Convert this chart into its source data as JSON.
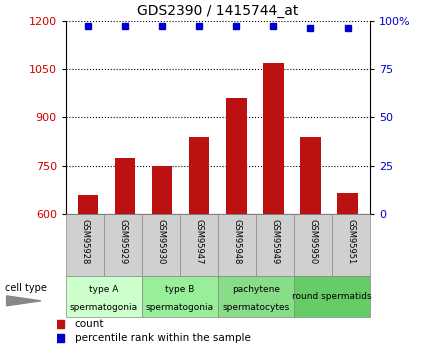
{
  "title": "GDS2390 / 1415744_at",
  "samples": [
    "GSM95928",
    "GSM95929",
    "GSM95930",
    "GSM95947",
    "GSM95948",
    "GSM95949",
    "GSM95950",
    "GSM95951"
  ],
  "counts": [
    660,
    775,
    750,
    840,
    960,
    1070,
    840,
    665
  ],
  "percentile_ranks": [
    97,
    97,
    97,
    97,
    97,
    97,
    96,
    96
  ],
  "bar_color": "#bb1111",
  "dot_color": "#0000cc",
  "ylim_left": [
    600,
    1200
  ],
  "yticks_left": [
    600,
    750,
    900,
    1050,
    1200
  ],
  "ylim_right": [
    0,
    100
  ],
  "yticks_right": [
    0,
    25,
    50,
    75,
    100
  ],
  "cell_types": [
    {
      "label": "type A\nspermatogonia",
      "samples": [
        "GSM95928",
        "GSM95929"
      ],
      "color": "#ccffcc"
    },
    {
      "label": "type B\nspermatogonia",
      "samples": [
        "GSM95930",
        "GSM95947"
      ],
      "color": "#99ee99"
    },
    {
      "label": "pachytene\nspermatocytes",
      "samples": [
        "GSM95948",
        "GSM95949"
      ],
      "color": "#88dd88"
    },
    {
      "label": "round spermatids",
      "samples": [
        "GSM95950",
        "GSM95951"
      ],
      "color": "#66cc66"
    }
  ],
  "legend_count_color": "#bb1111",
  "legend_percentile_color": "#0000cc",
  "left_axis_color": "#cc0000",
  "right_axis_color": "#0000cc",
  "sample_box_color": "#d0d0d0",
  "sample_box_edge": "#888888"
}
